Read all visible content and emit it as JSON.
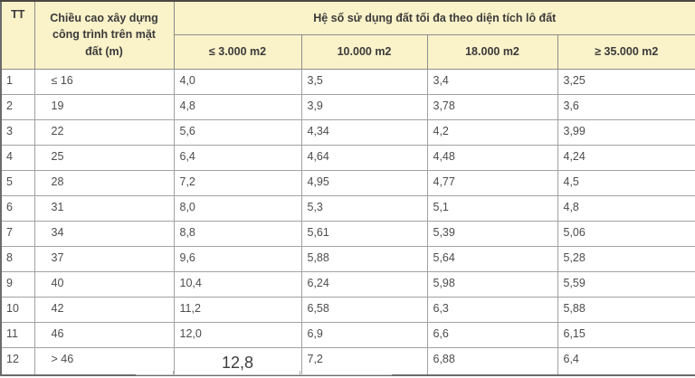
{
  "table": {
    "title_semantic": "Hệ số sử dụng đất tối đa theo diện tích lô đất",
    "header": {
      "tt": "TT",
      "height_col": "Chiều cao xây dựng công trình trên mặt đất (m)",
      "group": "Hệ số sử dụng đất tối đa theo diện tích lô đất",
      "sub_cols": [
        "≤ 3.000 m2",
        "10.000 m2",
        "18.000 m2",
        "≥ 35.000 m2"
      ]
    },
    "rows": [
      {
        "tt": "1",
        "height": "≤ 16",
        "values": [
          "4,0",
          "3,5",
          "3,4",
          "3,25"
        ]
      },
      {
        "tt": "2",
        "height": "19",
        "values": [
          "4,8",
          "3,9",
          "3,78",
          "3,6"
        ]
      },
      {
        "tt": "3",
        "height": "22",
        "values": [
          "5,6",
          "4,34",
          "4,2",
          "3,99"
        ]
      },
      {
        "tt": "4",
        "height": "25",
        "values": [
          "6,4",
          "4,64",
          "4,48",
          "4,24"
        ]
      },
      {
        "tt": "5",
        "height": "28",
        "values": [
          "7,2",
          "4,95",
          "4,77",
          "4,5"
        ]
      },
      {
        "tt": "6",
        "height": "31",
        "values": [
          "8,0",
          "5,3",
          "5,1",
          "4,8"
        ]
      },
      {
        "tt": "7",
        "height": "34",
        "values": [
          "8,8",
          "5,61",
          "5,39",
          "5,06"
        ]
      },
      {
        "tt": "8",
        "height": "37",
        "values": [
          "9,6",
          "5,88",
          "5,64",
          "5,28"
        ]
      },
      {
        "tt": "9",
        "height": "40",
        "values": [
          "10,4",
          "6,24",
          "5,98",
          "5,59"
        ]
      },
      {
        "tt": "10",
        "height": "42",
        "values": [
          "11,2",
          "6,58",
          "6,3",
          "5,88"
        ]
      },
      {
        "tt": "11",
        "height": "46",
        "values": [
          "12,0",
          "6,9",
          "6,6",
          "6,15"
        ]
      },
      {
        "tt": "12",
        "height": "> 46",
        "values": [
          "12,8",
          "7,2",
          "6,88",
          "6,4"
        ],
        "magnified_first_value": true
      }
    ],
    "colors": {
      "header_bg": "#faf2c9",
      "header_text": "#3a3a3a",
      "body_text": "#4c4c4c",
      "outer_border": "#4c4640",
      "inner_border": "#a2a2a2",
      "body_bg": "#ffffff"
    }
  }
}
